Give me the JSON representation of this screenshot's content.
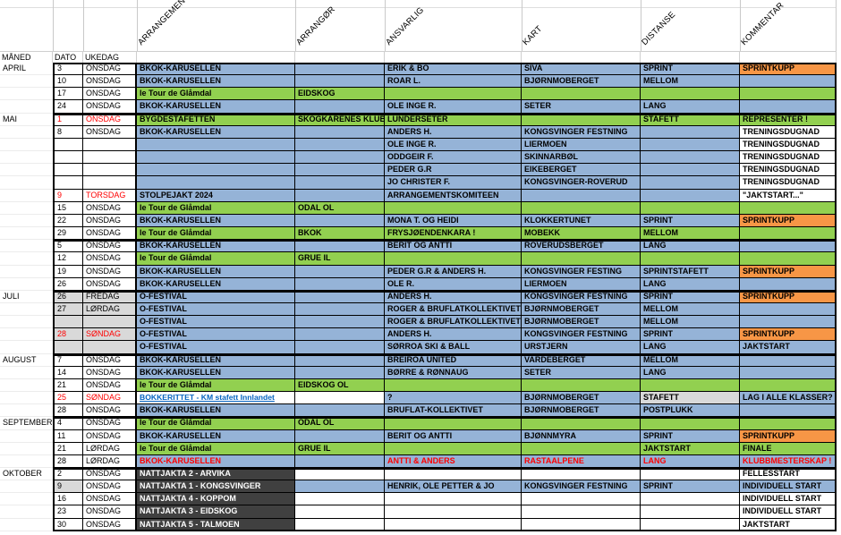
{
  "colors": {
    "cell_blue": "#95b3d7",
    "cell_green": "#92d050",
    "cell_orange": "#f79646",
    "cell_dark": "#404040",
    "cell_gray": "#d9d9d9",
    "red_text": "#ff0000",
    "hyperlink_text": "#0563c1"
  },
  "header": {
    "row_labels": [
      "MÅNED",
      "DATO",
      "UKEDAG"
    ],
    "rotated_labels": [
      "ARRANGEMENT",
      "ARRANGØR",
      "ANSVARLIG",
      "KART",
      "DISTANSE",
      "KOMMENTAR"
    ]
  },
  "rows": [
    {
      "month": "APRIL",
      "start": true,
      "dato": "3",
      "ukedag": "ONSDAG",
      "cells": [
        {
          "t": "BKOK-KARUSELLEN",
          "bg": "b"
        },
        {
          "t": "",
          "bg": "b"
        },
        {
          "t": "ERIK & BO",
          "bg": "b"
        },
        {
          "t": "SIVA",
          "bg": "b"
        },
        {
          "t": "SPRINT",
          "bg": "b"
        },
        {
          "t": "SPRINTKUPP",
          "bg": "o"
        }
      ]
    },
    {
      "month": "",
      "dato": "10",
      "ukedag": "ONSDAG",
      "cells": [
        {
          "t": "BKOK-KARUSELLEN",
          "bg": "b"
        },
        {
          "t": "",
          "bg": "b"
        },
        {
          "t": "ROAR L.",
          "bg": "b"
        },
        {
          "t": "BJØRNMOBERGET",
          "bg": "b"
        },
        {
          "t": "MELLOM",
          "bg": "b"
        },
        {
          "t": "",
          "bg": "b"
        }
      ]
    },
    {
      "month": "",
      "dato": "17",
      "ukedag": "ONSDAG",
      "cells": [
        {
          "t": "le Tour de Glåmdal",
          "bg": "g"
        },
        {
          "t": "EIDSKOG",
          "bg": "g"
        },
        {
          "t": "",
          "bg": "g"
        },
        {
          "t": "",
          "bg": "g"
        },
        {
          "t": "",
          "bg": "g"
        },
        {
          "t": "",
          "bg": "g"
        }
      ]
    },
    {
      "month": "",
      "dato": "24",
      "ukedag": "ONSDAG",
      "cells": [
        {
          "t": "BKOK-KARUSELLEN",
          "bg": "b"
        },
        {
          "t": "",
          "bg": "b"
        },
        {
          "t": "OLE INGE R.",
          "bg": "b"
        },
        {
          "t": "SETER",
          "bg": "b"
        },
        {
          "t": "LANG",
          "bg": "b"
        },
        {
          "t": "",
          "bg": "b"
        }
      ]
    },
    {
      "month": "MAI",
      "start": true,
      "dato": "1",
      "ukedag": "ONSDAG",
      "dred": true,
      "cells": [
        {
          "t": "BYGDESTAFETTEN",
          "bg": "g"
        },
        {
          "t": "SKOGKARENES KLUBB",
          "bg": "g"
        },
        {
          "t": "LUNDERSETER",
          "bg": "g"
        },
        {
          "t": "",
          "bg": "g"
        },
        {
          "t": "STAFETT",
          "bg": "g"
        },
        {
          "t": "REPRESENTER !",
          "bg": "g"
        }
      ]
    },
    {
      "month": "",
      "dato": "8",
      "ukedag": "ONSDAG",
      "cells": [
        {
          "t": "BKOK-KARUSELLEN",
          "bg": "b"
        },
        {
          "t": "",
          "bg": "b"
        },
        {
          "t": "ANDERS H.",
          "bg": "b"
        },
        {
          "t": "KONGSVINGER FESTNING",
          "bg": "b"
        },
        {
          "t": "",
          "bg": "b"
        },
        {
          "t": "TRENINGSDUGNAD",
          "bg": "w"
        }
      ]
    },
    {
      "month": "",
      "dato": "",
      "ukedag": "",
      "cells": [
        {
          "t": "",
          "bg": "b"
        },
        {
          "t": "",
          "bg": "b"
        },
        {
          "t": "OLE INGE R.",
          "bg": "b"
        },
        {
          "t": "LIERMOEN",
          "bg": "b"
        },
        {
          "t": "",
          "bg": "b"
        },
        {
          "t": "TRENINGSDUGNAD",
          "bg": "w"
        }
      ]
    },
    {
      "month": "",
      "dato": "",
      "ukedag": "",
      "cells": [
        {
          "t": "",
          "bg": "b"
        },
        {
          "t": "",
          "bg": "b"
        },
        {
          "t": "ODDGEIR F.",
          "bg": "b"
        },
        {
          "t": "SKINNARBØL",
          "bg": "b"
        },
        {
          "t": "",
          "bg": "b"
        },
        {
          "t": "TRENINGSDUGNAD",
          "bg": "w"
        }
      ]
    },
    {
      "month": "",
      "dato": "",
      "ukedag": "",
      "cells": [
        {
          "t": "",
          "bg": "b"
        },
        {
          "t": "",
          "bg": "b"
        },
        {
          "t": "PEDER G.R",
          "bg": "b"
        },
        {
          "t": "EIKEBERGET",
          "bg": "b"
        },
        {
          "t": "",
          "bg": "b"
        },
        {
          "t": "TRENINGSDUGNAD",
          "bg": "w"
        }
      ]
    },
    {
      "month": "",
      "dato": "",
      "ukedag": "",
      "cells": [
        {
          "t": "",
          "bg": "b"
        },
        {
          "t": "",
          "bg": "b"
        },
        {
          "t": "JO CHRISTER F.",
          "bg": "b"
        },
        {
          "t": "KONGSVINGER-ROVERUD",
          "bg": "b"
        },
        {
          "t": "",
          "bg": "b"
        },
        {
          "t": "TRENINGSDUGNAD",
          "bg": "w"
        }
      ]
    },
    {
      "month": "",
      "dato": "9",
      "ukedag": "TORSDAG",
      "dred": true,
      "cells": [
        {
          "t": "STOLPEJAKT 2024",
          "bg": "b"
        },
        {
          "t": "",
          "bg": "b"
        },
        {
          "t": "ARRANGEMENTSKOMITEEN",
          "bg": "b"
        },
        {
          "t": "",
          "bg": "b"
        },
        {
          "t": "",
          "bg": "b"
        },
        {
          "t": "\"JAKTSTART...\"",
          "bg": "w"
        }
      ]
    },
    {
      "month": "",
      "dato": "15",
      "ukedag": "ONSDAG",
      "cells": [
        {
          "t": "le Tour de Glåmdal",
          "bg": "g"
        },
        {
          "t": "ODAL OL",
          "bg": "g"
        },
        {
          "t": "",
          "bg": "g"
        },
        {
          "t": "",
          "bg": "g"
        },
        {
          "t": "",
          "bg": "g"
        },
        {
          "t": "",
          "bg": "g"
        }
      ]
    },
    {
      "month": "",
      "dato": "22",
      "ukedag": "ONSDAG",
      "cells": [
        {
          "t": "BKOK-KARUSELLEN",
          "bg": "b"
        },
        {
          "t": "",
          "bg": "b"
        },
        {
          "t": "MONA T. OG HEIDI",
          "bg": "b"
        },
        {
          "t": "KLOKKERTUNET",
          "bg": "b"
        },
        {
          "t": "SPRINT",
          "bg": "b"
        },
        {
          "t": "SPRINTKUPP",
          "bg": "o"
        }
      ]
    },
    {
      "month": "",
      "dato": "29",
      "ukedag": "ONSDAG",
      "cells": [
        {
          "t": "le Tour de Glåmdal",
          "bg": "g"
        },
        {
          "t": "BKOK",
          "bg": "g"
        },
        {
          "t": "FRYSJØENDENKARA !",
          "bg": "g"
        },
        {
          "t": "MOBEKK",
          "bg": "g"
        },
        {
          "t": "MELLOM",
          "bg": "g"
        },
        {
          "t": "",
          "bg": "g"
        }
      ]
    },
    {
      "month": "",
      "start": true,
      "dato": "5",
      "ukedag": "ONSDAG",
      "cells": [
        {
          "t": "BKOK-KARUSELLEN",
          "bg": "b"
        },
        {
          "t": "",
          "bg": "b"
        },
        {
          "t": "BERIT OG ANTTI",
          "bg": "b"
        },
        {
          "t": "ROVERUDSBERGET",
          "bg": "b"
        },
        {
          "t": "LANG",
          "bg": "b"
        },
        {
          "t": "",
          "bg": "b"
        }
      ]
    },
    {
      "month": "",
      "dato": "12",
      "ukedag": "ONSDAG",
      "cells": [
        {
          "t": "le Tour de Glåmdal",
          "bg": "g"
        },
        {
          "t": "GRUE IL",
          "bg": "g"
        },
        {
          "t": "",
          "bg": "g"
        },
        {
          "t": "",
          "bg": "g"
        },
        {
          "t": "",
          "bg": "g"
        },
        {
          "t": "",
          "bg": "g"
        }
      ]
    },
    {
      "month": "",
      "dato": "19",
      "ukedag": "ONSDAG",
      "cells": [
        {
          "t": "BKOK-KARUSELLEN",
          "bg": "b"
        },
        {
          "t": "",
          "bg": "b"
        },
        {
          "t": "PEDER G.R & ANDERS H.",
          "bg": "b"
        },
        {
          "t": "KONGSVINGER FESTING",
          "bg": "b"
        },
        {
          "t": "SPRINTSTAFETT",
          "bg": "b"
        },
        {
          "t": "SPRINTKUPP",
          "bg": "o"
        }
      ]
    },
    {
      "month": "",
      "dato": "26",
      "ukedag": "ONSDAG",
      "cells": [
        {
          "t": "BKOK-KARUSELLEN",
          "bg": "b"
        },
        {
          "t": "",
          "bg": "b"
        },
        {
          "t": "OLE R.",
          "bg": "b"
        },
        {
          "t": "LIERMOEN",
          "bg": "b"
        },
        {
          "t": "LANG",
          "bg": "b"
        },
        {
          "t": "",
          "bg": "b"
        }
      ]
    },
    {
      "month": "JULI",
      "start": true,
      "dato": "26",
      "ukedag": "FREDAG",
      "dgray": true,
      "ugray": true,
      "cells": [
        {
          "t": "O-FESTIVAL",
          "bg": "b"
        },
        {
          "t": "",
          "bg": "b"
        },
        {
          "t": "ANDERS H.",
          "bg": "b"
        },
        {
          "t": "KONGSVINGER FESTNING",
          "bg": "b"
        },
        {
          "t": "SPRINT",
          "bg": "b"
        },
        {
          "t": "SPRINTKUPP",
          "bg": "o"
        }
      ]
    },
    {
      "month": "",
      "dato": "27",
      "ukedag": "LØRDAG",
      "dgray": true,
      "ugray": true,
      "cells": [
        {
          "t": "O-FESTIVAL",
          "bg": "b"
        },
        {
          "t": "",
          "bg": "b"
        },
        {
          "t": "ROGER & BRUFLATKOLLEKTIVET",
          "bg": "b"
        },
        {
          "t": "BJØRNMOBERGET",
          "bg": "b"
        },
        {
          "t": "MELLOM",
          "bg": "b"
        },
        {
          "t": "",
          "bg": "b"
        }
      ]
    },
    {
      "month": "",
      "dato": "",
      "ukedag": "",
      "dgray": true,
      "ugray": true,
      "cells": [
        {
          "t": "O-FESTIVAL",
          "bg": "b"
        },
        {
          "t": "",
          "bg": "b"
        },
        {
          "t": "ROGER & BRUFLATKOLLEKTIVET",
          "bg": "b"
        },
        {
          "t": "BJØRNMOBERGET",
          "bg": "b"
        },
        {
          "t": "MELLOM",
          "bg": "b"
        },
        {
          "t": "",
          "bg": "b"
        }
      ]
    },
    {
      "month": "",
      "dato": "28",
      "ukedag": "SØNDAG",
      "dred": true,
      "dgray": true,
      "ugray": true,
      "cells": [
        {
          "t": "O-FESTIVAL",
          "bg": "b"
        },
        {
          "t": "",
          "bg": "b"
        },
        {
          "t": "ANDERS H.",
          "bg": "b"
        },
        {
          "t": "KONGSVINGER FESTNING",
          "bg": "b"
        },
        {
          "t": "SPRINT",
          "bg": "b"
        },
        {
          "t": "SPRINTKUPP",
          "bg": "o"
        }
      ]
    },
    {
      "month": "",
      "dato": "",
      "ukedag": "",
      "dgray": true,
      "ugray": true,
      "cells": [
        {
          "t": "O-FESTIVAL",
          "bg": "b"
        },
        {
          "t": "",
          "bg": "b"
        },
        {
          "t": "SØRROA SKI & BALL",
          "bg": "b"
        },
        {
          "t": "URSTJERN",
          "bg": "b"
        },
        {
          "t": "LANG",
          "bg": "b"
        },
        {
          "t": "JAKTSTART",
          "bg": "b"
        }
      ]
    },
    {
      "month": "AUGUST",
      "start": true,
      "dato": "7",
      "ukedag": "ONSDAG",
      "cells": [
        {
          "t": "BKOK-KARUSELLEN",
          "bg": "b"
        },
        {
          "t": "",
          "bg": "b"
        },
        {
          "t": "BREIROA UNITED",
          "bg": "b"
        },
        {
          "t": "VARDEBERGET",
          "bg": "b"
        },
        {
          "t": "MELLOM",
          "bg": "b"
        },
        {
          "t": "",
          "bg": "b"
        }
      ]
    },
    {
      "month": "",
      "dato": "14",
      "ukedag": "ONSDAG",
      "cells": [
        {
          "t": "BKOK-KARUSELLEN",
          "bg": "b"
        },
        {
          "t": "",
          "bg": "b"
        },
        {
          "t": "BØRRE & RØNNAUG",
          "bg": "b"
        },
        {
          "t": "SETER",
          "bg": "b"
        },
        {
          "t": "LANG",
          "bg": "b"
        },
        {
          "t": "",
          "bg": "b"
        }
      ]
    },
    {
      "month": "",
      "dato": "21",
      "ukedag": "ONSDAG",
      "cells": [
        {
          "t": "le Tour de Glåmdal",
          "bg": "g"
        },
        {
          "t": "EIDSKOG OL",
          "bg": "g"
        },
        {
          "t": "",
          "bg": "g"
        },
        {
          "t": "",
          "bg": "g"
        },
        {
          "t": "",
          "bg": "g"
        },
        {
          "t": "",
          "bg": "g"
        }
      ]
    },
    {
      "month": "",
      "dato": "25",
      "ukedag": "SØNDAG",
      "dred": true,
      "cells": [
        {
          "t": "BOKKERITTET - KM stafett Innlandet",
          "bg": "w",
          "f": "link"
        },
        {
          "t": "",
          "bg": "w"
        },
        {
          "t": "?",
          "bg": "b"
        },
        {
          "t": "BJØRNMOBERGET",
          "bg": "b"
        },
        {
          "t": "STAFETT",
          "bg": "y"
        },
        {
          "t": "LAG I ALLE KLASSER?",
          "bg": "b"
        }
      ]
    },
    {
      "month": "",
      "dato": "28",
      "ukedag": "ONSDAG",
      "cells": [
        {
          "t": "BKOK-KARUSELLEN",
          "bg": "b"
        },
        {
          "t": "",
          "bg": "b"
        },
        {
          "t": "BRUFLAT-KOLLEKTIVET",
          "bg": "b"
        },
        {
          "t": "BJØRNMOBERGET",
          "bg": "b"
        },
        {
          "t": "POSTPLUKK",
          "bg": "b"
        },
        {
          "t": "",
          "bg": "b"
        }
      ]
    },
    {
      "month": "SEPTEMBER",
      "start": true,
      "dato": "4",
      "ukedag": "ONSDAG",
      "cells": [
        {
          "t": "le Tour de Glåmdal",
          "bg": "g"
        },
        {
          "t": "ODAL OL",
          "bg": "g"
        },
        {
          "t": "",
          "bg": "g"
        },
        {
          "t": "",
          "bg": "g"
        },
        {
          "t": "",
          "bg": "g"
        },
        {
          "t": "",
          "bg": "g"
        }
      ]
    },
    {
      "month": "",
      "dato": "11",
      "ukedag": "ONSDAG",
      "cells": [
        {
          "t": "BKOK-KARUSELLEN",
          "bg": "b"
        },
        {
          "t": "",
          "bg": "b"
        },
        {
          "t": "BERIT OG ANTTI",
          "bg": "b"
        },
        {
          "t": "BJØNNMYRA",
          "bg": "b"
        },
        {
          "t": "SPRINT",
          "bg": "b"
        },
        {
          "t": "SPRINTKUPP",
          "bg": "o"
        }
      ]
    },
    {
      "month": "",
      "dato": "21",
      "ukedag": "LØRDAG",
      "cells": [
        {
          "t": "le Tour de Glåmdal",
          "bg": "g"
        },
        {
          "t": "GRUE IL",
          "bg": "g"
        },
        {
          "t": "",
          "bg": "g"
        },
        {
          "t": "",
          "bg": "g"
        },
        {
          "t": "JAKTSTART",
          "bg": "g"
        },
        {
          "t": "FINALE",
          "bg": "g"
        }
      ]
    },
    {
      "month": "",
      "dato": "28",
      "ukedag": "LØRDAG",
      "cells": [
        {
          "t": "BKOK-KARUSELLEN",
          "bg": "b",
          "f": "red"
        },
        {
          "t": "",
          "bg": "b"
        },
        {
          "t": "ANTTI & ANDERS",
          "bg": "b",
          "f": "red"
        },
        {
          "t": "RASTAALPENE",
          "bg": "b",
          "f": "red"
        },
        {
          "t": "LANG",
          "bg": "b",
          "f": "red"
        },
        {
          "t": "KLUBBMESTERSKAP !",
          "bg": "b",
          "f": "red"
        }
      ]
    },
    {
      "month": "OKTOBER",
      "start": true,
      "dato": "2",
      "ukedag": "ONSDAG",
      "cells": [
        {
          "t": "NATTJAKTA 2 - ARVIKA",
          "bg": "d"
        },
        {
          "t": "",
          "bg": "w"
        },
        {
          "t": "",
          "bg": "w"
        },
        {
          "t": "",
          "bg": "w"
        },
        {
          "t": "",
          "bg": "w"
        },
        {
          "t": "FELLESSTART",
          "bg": "w"
        }
      ]
    },
    {
      "month": "",
      "dato": "9",
      "ukedag": "ONSDAG",
      "dgray": true,
      "cells": [
        {
          "t": "NATTJAKTA 1 - KONGSVINGER",
          "bg": "d"
        },
        {
          "t": "",
          "bg": "b"
        },
        {
          "t": "HENRIK, OLE PETTER & JO",
          "bg": "b"
        },
        {
          "t": "KONGSVINGER FESTNING",
          "bg": "b"
        },
        {
          "t": "SPRINT",
          "bg": "b"
        },
        {
          "t": "INDIVIDUELL START",
          "bg": "b"
        }
      ]
    },
    {
      "month": "",
      "dato": "16",
      "ukedag": "ONSDAG",
      "cells": [
        {
          "t": "NATTJAKTA 4 - KOPPOM",
          "bg": "d"
        },
        {
          "t": "",
          "bg": "w"
        },
        {
          "t": "",
          "bg": "w"
        },
        {
          "t": "",
          "bg": "w"
        },
        {
          "t": "",
          "bg": "w"
        },
        {
          "t": "INDIVIDUELL START",
          "bg": "w"
        }
      ]
    },
    {
      "month": "",
      "dato": "23",
      "ukedag": "ONSDAG",
      "cells": [
        {
          "t": "NATTJAKTA 3 - EIDSKOG",
          "bg": "d"
        },
        {
          "t": "",
          "bg": "w"
        },
        {
          "t": "",
          "bg": "w"
        },
        {
          "t": "",
          "bg": "w"
        },
        {
          "t": "",
          "bg": "w"
        },
        {
          "t": "INDIVIDUELL START",
          "bg": "w"
        }
      ]
    },
    {
      "month": "",
      "dato": "30",
      "ukedag": "ONSDAG",
      "cells": [
        {
          "t": "NATTJAKTA 5 - TALMOEN",
          "bg": "d"
        },
        {
          "t": "",
          "bg": "w"
        },
        {
          "t": "",
          "bg": "w"
        },
        {
          "t": "",
          "bg": "w"
        },
        {
          "t": "",
          "bg": "w"
        },
        {
          "t": "JAKTSTART",
          "bg": "w"
        }
      ]
    }
  ]
}
